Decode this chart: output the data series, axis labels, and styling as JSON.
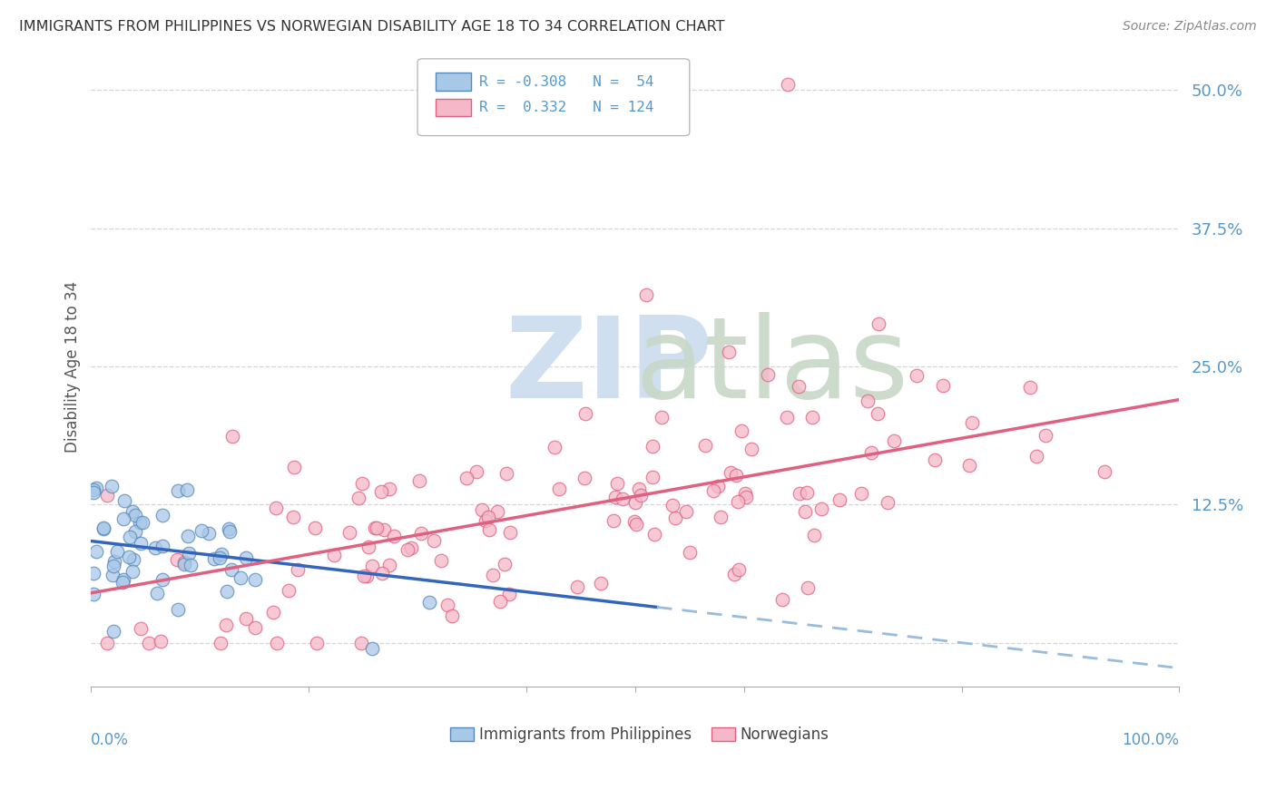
{
  "title": "IMMIGRANTS FROM PHILIPPINES VS NORWEGIAN DISABILITY AGE 18 TO 34 CORRELATION CHART",
  "source": "Source: ZipAtlas.com",
  "ylabel": "Disability Age 18 to 34",
  "ytick_vals": [
    0.0,
    0.125,
    0.25,
    0.375,
    0.5
  ],
  "ytick_labels": [
    "",
    "12.5%",
    "25.0%",
    "37.5%",
    "50.0%"
  ],
  "xlim": [
    0.0,
    1.0
  ],
  "ylim": [
    -0.04,
    0.54
  ],
  "philippines_color": "#a8c8e8",
  "philippines_edge": "#5588bb",
  "norwegians_color": "#f4b8c8",
  "norwegians_edge": "#e06080",
  "philippines_line_color": "#3366bb",
  "norwegians_line_color": "#e06080",
  "philippines_dash_color": "#99bbdd",
  "philippines_R": -0.308,
  "philippines_N": 54,
  "norwegians_R": 0.332,
  "norwegians_N": 124,
  "ph_line_solid_end": 0.52,
  "ph_line_start_y": 0.092,
  "ph_line_slope": -0.115,
  "no_line_start_y": 0.045,
  "no_line_slope": 0.175,
  "background_color": "#ffffff",
  "grid_color": "#cccccc",
  "axis_label_color": "#5599cc",
  "title_color": "#333333",
  "watermark_color": "#d0dff0"
}
